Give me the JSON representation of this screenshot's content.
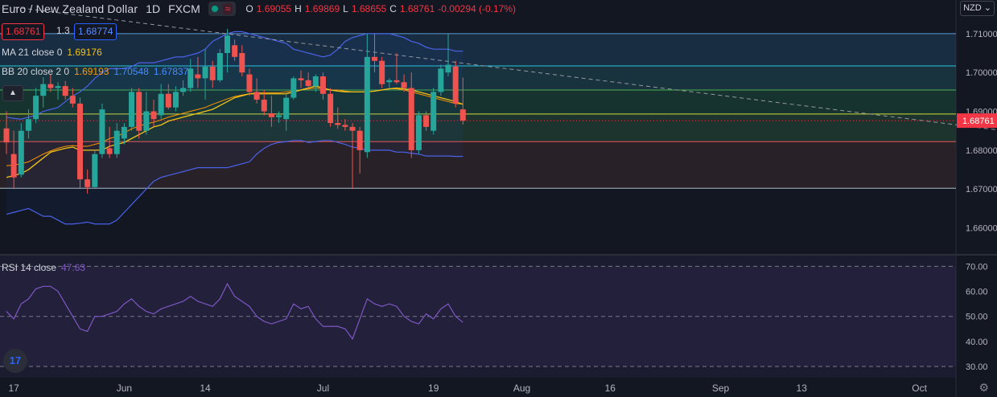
{
  "header": {
    "title": "Euro / New Zealand Dollar",
    "interval": "1D",
    "source": "FXCM",
    "ohlc": [
      {
        "label": "O",
        "value": "1.69055"
      },
      {
        "label": "H",
        "value": "1.69869"
      },
      {
        "label": "L",
        "value": "1.68655"
      },
      {
        "label": "C",
        "value": "1.68761"
      }
    ],
    "change": "-0.00294 (-0.17%)"
  },
  "order_panel": {
    "sell": "1.68761",
    "spread": "1.3",
    "buy": "1.68774"
  },
  "indicators": {
    "ma": {
      "label": "MA 21 close 0",
      "value": "1.69176"
    },
    "bb": {
      "label": "BB 20 close 2 0",
      "basis": "1.69193",
      "upper": "1.70548",
      "lower": "1.67837"
    },
    "rsi": {
      "label": "RSI 14 close",
      "value": "47.63"
    }
  },
  "currency": "NZD",
  "icons": {
    "collapse": "chevron-up-icon",
    "logo": "tradingview-logo-icon",
    "settings": "gear-icon",
    "currency": "chevron-down-icon"
  },
  "colors": {
    "up": "#26a69a",
    "down": "#ef5350",
    "ma": "#f0c419",
    "bb": "#4a62e8",
    "rsi": "#7e57c2",
    "bg": "#131722",
    "last_price": "#f23645"
  },
  "chart_data": [
    {
      "type": "candlestick",
      "title": "Euro / New Zealand Dollar",
      "ylim": [
        1.6533,
        1.7141
      ],
      "y_ticks": [
        "1.71000",
        "1.70000",
        "1.69000",
        "1.68000",
        "1.67000",
        "1.66000"
      ],
      "last_price": "1.68761",
      "x_ticks": [
        "17",
        "Jun",
        "14",
        "Jul",
        "19",
        "Aug",
        "16",
        "Sep",
        "13",
        "Oct"
      ],
      "horizontal_levels": [
        1.71,
        1.7017,
        1.6955,
        1.6893,
        1.6822,
        1.6702
      ],
      "trendline": [
        [
          1,
          1.7168
        ],
        [
          196,
          1.6707
        ]
      ],
      "candles": [
        {
          "o": 1.6856,
          "h": 1.69,
          "l": 1.679,
          "c": 1.682
        },
        {
          "o": 1.679,
          "h": 1.685,
          "l": 1.67,
          "c": 1.673
        },
        {
          "o": 1.6737,
          "h": 1.687,
          "l": 1.673,
          "c": 1.685
        },
        {
          "o": 1.685,
          "h": 1.6905,
          "l": 1.683,
          "c": 1.688
        },
        {
          "o": 1.688,
          "h": 1.696,
          "l": 1.687,
          "c": 1.694
        },
        {
          "o": 1.694,
          "h": 1.6988,
          "l": 1.691,
          "c": 1.697
        },
        {
          "o": 1.697,
          "h": 1.6995,
          "l": 1.695,
          "c": 1.696
        },
        {
          "o": 1.696,
          "h": 1.6975,
          "l": 1.693,
          "c": 1.6965
        },
        {
          "o": 1.6965,
          "h": 1.6978,
          "l": 1.693,
          "c": 1.694
        },
        {
          "o": 1.694,
          "h": 1.696,
          "l": 1.691,
          "c": 1.692
        },
        {
          "o": 1.692,
          "h": 1.6935,
          "l": 1.67,
          "c": 1.6725
        },
        {
          "o": 1.6725,
          "h": 1.675,
          "l": 1.6688,
          "c": 1.6705
        },
        {
          "o": 1.6705,
          "h": 1.68,
          "l": 1.67,
          "c": 1.679
        },
        {
          "o": 1.679,
          "h": 1.692,
          "l": 1.678,
          "c": 1.6905
        },
        {
          "o": 1.6805,
          "h": 1.686,
          "l": 1.678,
          "c": 1.679
        },
        {
          "o": 1.679,
          "h": 1.687,
          "l": 1.678,
          "c": 1.685
        },
        {
          "o": 1.683,
          "h": 1.687,
          "l": 1.6815,
          "c": 1.686
        },
        {
          "o": 1.686,
          "h": 1.696,
          "l": 1.685,
          "c": 1.695
        },
        {
          "o": 1.695,
          "h": 1.696,
          "l": 1.683,
          "c": 1.685
        },
        {
          "o": 1.685,
          "h": 1.695,
          "l": 1.684,
          "c": 1.69
        },
        {
          "o": 1.69,
          "h": 1.693,
          "l": 1.686,
          "c": 1.688
        },
        {
          "o": 1.689,
          "h": 1.697,
          "l": 1.688,
          "c": 1.6945
        },
        {
          "o": 1.6945,
          "h": 1.697,
          "l": 1.6905,
          "c": 1.691
        },
        {
          "o": 1.691,
          "h": 1.6965,
          "l": 1.69,
          "c": 1.695
        },
        {
          "o": 1.695,
          "h": 1.698,
          "l": 1.694,
          "c": 1.696
        },
        {
          "o": 1.696,
          "h": 1.7035,
          "l": 1.695,
          "c": 1.701
        },
        {
          "o": 1.6995,
          "h": 1.704,
          "l": 1.696,
          "c": 1.6985
        },
        {
          "o": 1.6985,
          "h": 1.706,
          "l": 1.693,
          "c": 1.7015
        },
        {
          "o": 1.7015,
          "h": 1.703,
          "l": 1.696,
          "c": 1.698
        },
        {
          "o": 1.698,
          "h": 1.706,
          "l": 1.6975,
          "c": 1.705
        },
        {
          "o": 1.705,
          "h": 1.7112,
          "l": 1.7,
          "c": 1.7095
        },
        {
          "o": 1.707,
          "h": 1.7085,
          "l": 1.703,
          "c": 1.704
        },
        {
          "o": 1.705,
          "h": 1.707,
          "l": 1.699,
          "c": 1.7
        },
        {
          "o": 1.6995,
          "h": 1.701,
          "l": 1.694,
          "c": 1.695
        },
        {
          "o": 1.695,
          "h": 1.6985,
          "l": 1.692,
          "c": 1.693
        },
        {
          "o": 1.693,
          "h": 1.6955,
          "l": 1.689,
          "c": 1.69
        },
        {
          "o": 1.6895,
          "h": 1.694,
          "l": 1.686,
          "c": 1.6885
        },
        {
          "o": 1.6885,
          "h": 1.69,
          "l": 1.687,
          "c": 1.689
        },
        {
          "o": 1.688,
          "h": 1.6945,
          "l": 1.685,
          "c": 1.6935
        },
        {
          "o": 1.6935,
          "h": 1.699,
          "l": 1.693,
          "c": 1.6985
        },
        {
          "o": 1.6985,
          "h": 1.7005,
          "l": 1.696,
          "c": 1.698
        },
        {
          "o": 1.698,
          "h": 1.7,
          "l": 1.6955,
          "c": 1.6965
        },
        {
          "o": 1.6965,
          "h": 1.6995,
          "l": 1.695,
          "c": 1.699
        },
        {
          "o": 1.699,
          "h": 1.7,
          "l": 1.693,
          "c": 1.6945
        },
        {
          "o": 1.6945,
          "h": 1.696,
          "l": 1.686,
          "c": 1.687
        },
        {
          "o": 1.687,
          "h": 1.691,
          "l": 1.6855,
          "c": 1.6865
        },
        {
          "o": 1.6865,
          "h": 1.688,
          "l": 1.685,
          "c": 1.686
        },
        {
          "o": 1.686,
          "h": 1.687,
          "l": 1.67,
          "c": 1.685
        },
        {
          "o": 1.685,
          "h": 1.686,
          "l": 1.674,
          "c": 1.68
        },
        {
          "o": 1.6795,
          "h": 1.71,
          "l": 1.678,
          "c": 1.704
        },
        {
          "o": 1.704,
          "h": 1.71,
          "l": 1.7,
          "c": 1.703
        },
        {
          "o": 1.703,
          "h": 1.704,
          "l": 1.696,
          "c": 1.697
        },
        {
          "o": 1.6975,
          "h": 1.6985,
          "l": 1.696,
          "c": 1.698
        },
        {
          "o": 1.698,
          "h": 1.705,
          "l": 1.697,
          "c": 1.6975
        },
        {
          "o": 1.6975,
          "h": 1.6995,
          "l": 1.695,
          "c": 1.696
        },
        {
          "o": 1.696,
          "h": 1.7,
          "l": 1.678,
          "c": 1.68
        },
        {
          "o": 1.68,
          "h": 1.69,
          "l": 1.679,
          "c": 1.689
        },
        {
          "o": 1.689,
          "h": 1.69,
          "l": 1.685,
          "c": 1.686
        },
        {
          "o": 1.685,
          "h": 1.696,
          "l": 1.684,
          "c": 1.695
        },
        {
          "o": 1.695,
          "h": 1.702,
          "l": 1.694,
          "c": 1.701
        },
        {
          "o": 1.7,
          "h": 1.71,
          "l": 1.699,
          "c": 1.702
        },
        {
          "o": 1.7015,
          "h": 1.703,
          "l": 1.691,
          "c": 1.692
        },
        {
          "o": 1.6905,
          "h": 1.6987,
          "l": 1.6866,
          "c": 1.6876
        }
      ],
      "ma21": [
        1.673,
        1.6735,
        1.674,
        1.675,
        1.6765,
        1.678,
        1.6795,
        1.68,
        1.6805,
        1.6808,
        1.68,
        1.68,
        1.68,
        1.68,
        1.681,
        1.6815,
        1.682,
        1.683,
        1.684,
        1.685,
        1.686,
        1.6865,
        1.6875,
        1.688,
        1.6885,
        1.689,
        1.6895,
        1.69,
        1.6905,
        1.6915,
        1.6925,
        1.6935,
        1.694,
        1.6945,
        1.6945,
        1.6945,
        1.6945,
        1.6945,
        1.6945,
        1.695,
        1.6955,
        1.696,
        1.6965,
        1.696,
        1.6955,
        1.6952,
        1.695,
        1.695,
        1.695,
        1.695,
        1.6952,
        1.6955,
        1.6958,
        1.696,
        1.6958,
        1.6955,
        1.695,
        1.6945,
        1.694,
        1.6935,
        1.693,
        1.6925,
        1.6918
      ],
      "bb_upper": [
        1.6885,
        1.6882,
        1.688,
        1.6885,
        1.689,
        1.69,
        1.6905,
        1.691,
        1.6925,
        1.694,
        1.695,
        1.6965,
        1.6985,
        1.7,
        1.701,
        1.701,
        1.701,
        1.7015,
        1.7025,
        1.7025,
        1.7025,
        1.703,
        1.7035,
        1.704,
        1.704,
        1.7045,
        1.705,
        1.706,
        1.708,
        1.709,
        1.71,
        1.7105,
        1.7105,
        1.71,
        1.7095,
        1.709,
        1.7085,
        1.708,
        1.7075,
        1.706,
        1.7055,
        1.705,
        1.7045,
        1.704,
        1.7045,
        1.706,
        1.708,
        1.709,
        1.7095,
        1.71,
        1.71,
        1.71,
        1.71,
        1.7095,
        1.709,
        1.708,
        1.7075,
        1.7065,
        1.706,
        1.706,
        1.706,
        1.7055,
        1.7055
      ],
      "bb_basis": [
        1.676,
        1.6762,
        1.6765,
        1.677,
        1.678,
        1.679,
        1.6798,
        1.6805,
        1.681,
        1.6812,
        1.681,
        1.681,
        1.6815,
        1.682,
        1.683,
        1.6835,
        1.6845,
        1.6855,
        1.6862,
        1.6868,
        1.6872,
        1.6878,
        1.6885,
        1.689,
        1.6895,
        1.69,
        1.6905,
        1.691,
        1.6918,
        1.6925,
        1.6932,
        1.6938,
        1.6942,
        1.6945,
        1.6948,
        1.6948,
        1.6948,
        1.6948,
        1.695,
        1.6952,
        1.6955,
        1.6958,
        1.696,
        1.6958,
        1.6955,
        1.6955,
        1.6952,
        1.695,
        1.695,
        1.695,
        1.6952,
        1.6955,
        1.6958,
        1.6958,
        1.6955,
        1.695,
        1.6945,
        1.694,
        1.6935,
        1.693,
        1.6925,
        1.692,
        1.6919
      ],
      "bb_lower": [
        1.6635,
        1.664,
        1.6645,
        1.665,
        1.664,
        1.663,
        1.663,
        1.662,
        1.661,
        1.661,
        1.6612,
        1.6615,
        1.661,
        1.661,
        1.661,
        1.662,
        1.664,
        1.666,
        1.668,
        1.67,
        1.672,
        1.673,
        1.6735,
        1.674,
        1.6745,
        1.675,
        1.6755,
        1.6755,
        1.6755,
        1.6755,
        1.6755,
        1.676,
        1.6765,
        1.677,
        1.679,
        1.6805,
        1.6815,
        1.682,
        1.6822,
        1.6825,
        1.6825,
        1.682,
        1.6822,
        1.6825,
        1.6825,
        1.682,
        1.6815,
        1.6808,
        1.6805,
        1.68,
        1.68,
        1.68,
        1.68,
        1.6795,
        1.6795,
        1.6792,
        1.679,
        1.6785,
        1.6785,
        1.6785,
        1.6785,
        1.6784,
        1.6784
      ]
    },
    {
      "type": "line",
      "title": "RSI 14 close",
      "ylim": [
        25.5,
        74.3
      ],
      "y_ticks": [
        "70.00",
        "60.00",
        "50.00",
        "40.00",
        "30.00"
      ],
      "levels": [
        70,
        50,
        30
      ],
      "values": [
        52,
        49,
        55,
        57,
        61,
        62,
        62,
        60,
        55,
        50,
        45,
        44,
        50,
        50,
        51,
        52,
        55,
        57,
        54,
        52,
        51,
        53,
        54,
        55,
        56,
        58,
        56,
        55,
        54,
        57,
        63,
        58,
        56,
        54,
        50,
        48,
        47,
        48,
        49,
        55,
        53,
        54,
        49,
        46,
        46,
        46,
        45,
        41,
        49,
        57,
        55,
        54,
        55,
        54,
        50,
        48,
        47,
        51,
        49,
        53,
        55,
        50,
        47.63
      ]
    }
  ]
}
